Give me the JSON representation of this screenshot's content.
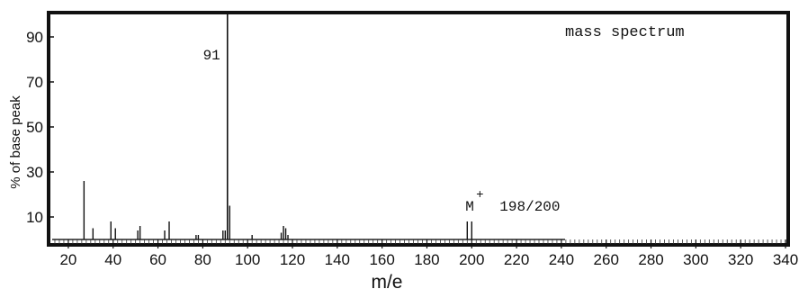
{
  "chart_data": {
    "type": "bar",
    "title": "mass spectrum",
    "xlabel": "m/e",
    "ylabel": "% of base peak",
    "xlim": [
      12,
      340
    ],
    "ylim": [
      0,
      100
    ],
    "x_ticks": [
      20,
      40,
      60,
      80,
      100,
      120,
      140,
      160,
      180,
      200,
      220,
      240,
      260,
      280,
      300,
      320,
      340
    ],
    "y_ticks": [
      10,
      30,
      50,
      70,
      90
    ],
    "grid": false,
    "annotations": [
      {
        "text": "91",
        "x": 91
      },
      {
        "text": "M",
        "x": 198
      },
      {
        "text": "+",
        "x": 198
      },
      {
        "text": "198/200",
        "x": 198
      }
    ],
    "peaks": {
      "x": [
        27,
        31,
        39,
        41,
        51,
        52,
        63,
        65,
        77,
        78,
        89,
        90,
        91,
        92,
        102,
        115,
        116,
        117,
        118,
        198,
        200
      ],
      "y": [
        26,
        5,
        8,
        5,
        4,
        6,
        4,
        8,
        2,
        2,
        4,
        4,
        100,
        15,
        2,
        3,
        6,
        5,
        2,
        8,
        8
      ]
    }
  }
}
